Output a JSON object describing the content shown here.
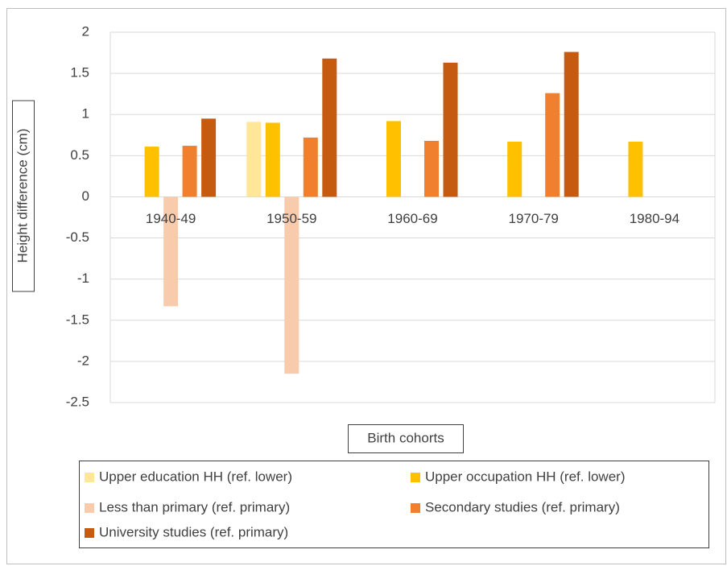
{
  "chart_data": {
    "type": "bar",
    "y_label": "Height difference (cm)",
    "x_label": "Birth cohorts",
    "categories": [
      "1940-49",
      "1950-59",
      "1960-69",
      "1970-79",
      "1980-94"
    ],
    "series": [
      {
        "name": "Upper education HH (ref. lower)",
        "color": "#ffe699",
        "values": [
          null,
          0.91,
          null,
          null,
          null
        ]
      },
      {
        "name": "Upper occupation HH (ref. lower)",
        "color": "#ffc000",
        "values": [
          0.61,
          0.9,
          0.92,
          0.67,
          0.67
        ]
      },
      {
        "name": "Less than primary (ref. primary)",
        "color": "#f8cbad",
        "values": [
          -1.33,
          -2.15,
          null,
          null,
          null
        ]
      },
      {
        "name": "Secondary studies (ref. primary)",
        "color": "#f0802d",
        "values": [
          0.62,
          0.72,
          0.68,
          1.26,
          null
        ]
      },
      {
        "name": "University studies (ref. primary)",
        "color": "#c55a11",
        "values": [
          0.95,
          1.68,
          1.63,
          1.76,
          null
        ]
      }
    ],
    "ylim": [
      -2.5,
      2
    ],
    "yticks": [
      2,
      1.5,
      1,
      0.5,
      0,
      -0.5,
      -1,
      -1.5,
      -2,
      -2.5
    ],
    "grid": true
  }
}
